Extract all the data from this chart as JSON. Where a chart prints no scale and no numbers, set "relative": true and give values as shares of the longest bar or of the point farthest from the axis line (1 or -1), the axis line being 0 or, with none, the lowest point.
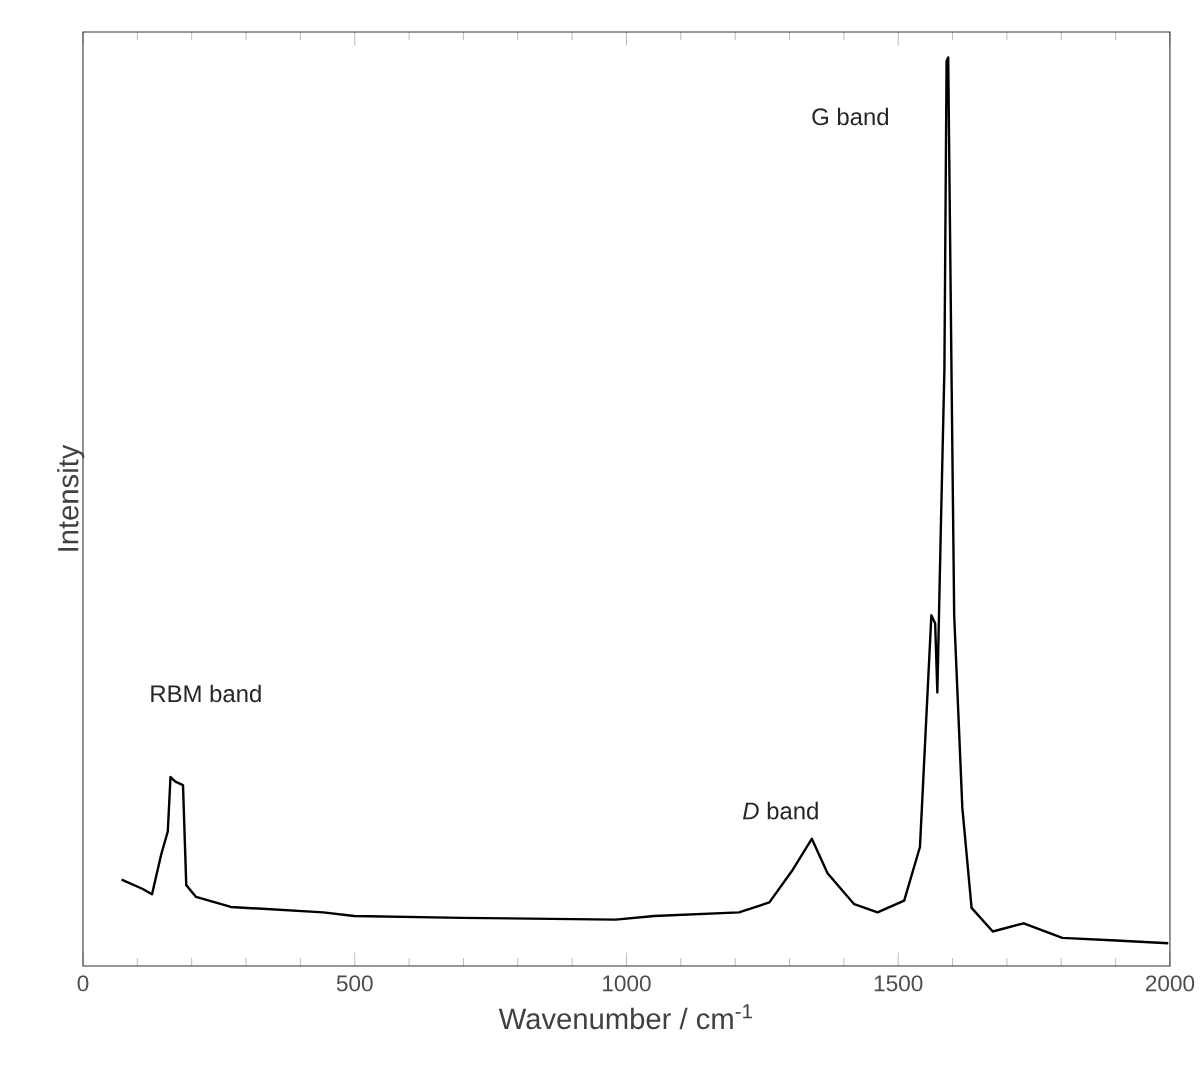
{
  "chart_data": {
    "type": "line",
    "relative": true,
    "xlabel": "Wavenumber / cm$^{-1}$",
    "ylabel": "Intensity",
    "xlim": [
      0,
      2000
    ],
    "xticks": [
      0,
      500,
      1000,
      1500,
      2000
    ],
    "color": "#000000",
    "x": [
      71,
      109,
      127,
      144,
      156,
      161,
      170,
      184,
      190,
      208,
      272,
      442,
      499,
      697,
      980,
      1051,
      1207,
      1263,
      1306,
      1341,
      1370,
      1419,
      1462,
      1511,
      1540,
      1554,
      1561,
      1568,
      1572,
      1578,
      1585,
      1589,
      1592,
      1598,
      1603,
      1618,
      1635,
      1674,
      1731,
      1802,
      1901,
      1997
    ],
    "values": [
      0.095,
      0.085,
      0.079,
      0.123,
      0.148,
      0.208,
      0.203,
      0.199,
      0.089,
      0.076,
      0.065,
      0.059,
      0.055,
      0.053,
      0.051,
      0.055,
      0.059,
      0.07,
      0.106,
      0.14,
      0.102,
      0.068,
      0.059,
      0.072,
      0.131,
      0.301,
      0.386,
      0.377,
      0.301,
      0.47,
      0.657,
      0.996,
      1,
      0.657,
      0.386,
      0.174,
      0.064,
      0.038,
      0.047,
      0.031,
      0.028,
      0.025
    ],
    "annotations": [
      "RBM band",
      "*D* band",
      "G band"
    ]
  }
}
